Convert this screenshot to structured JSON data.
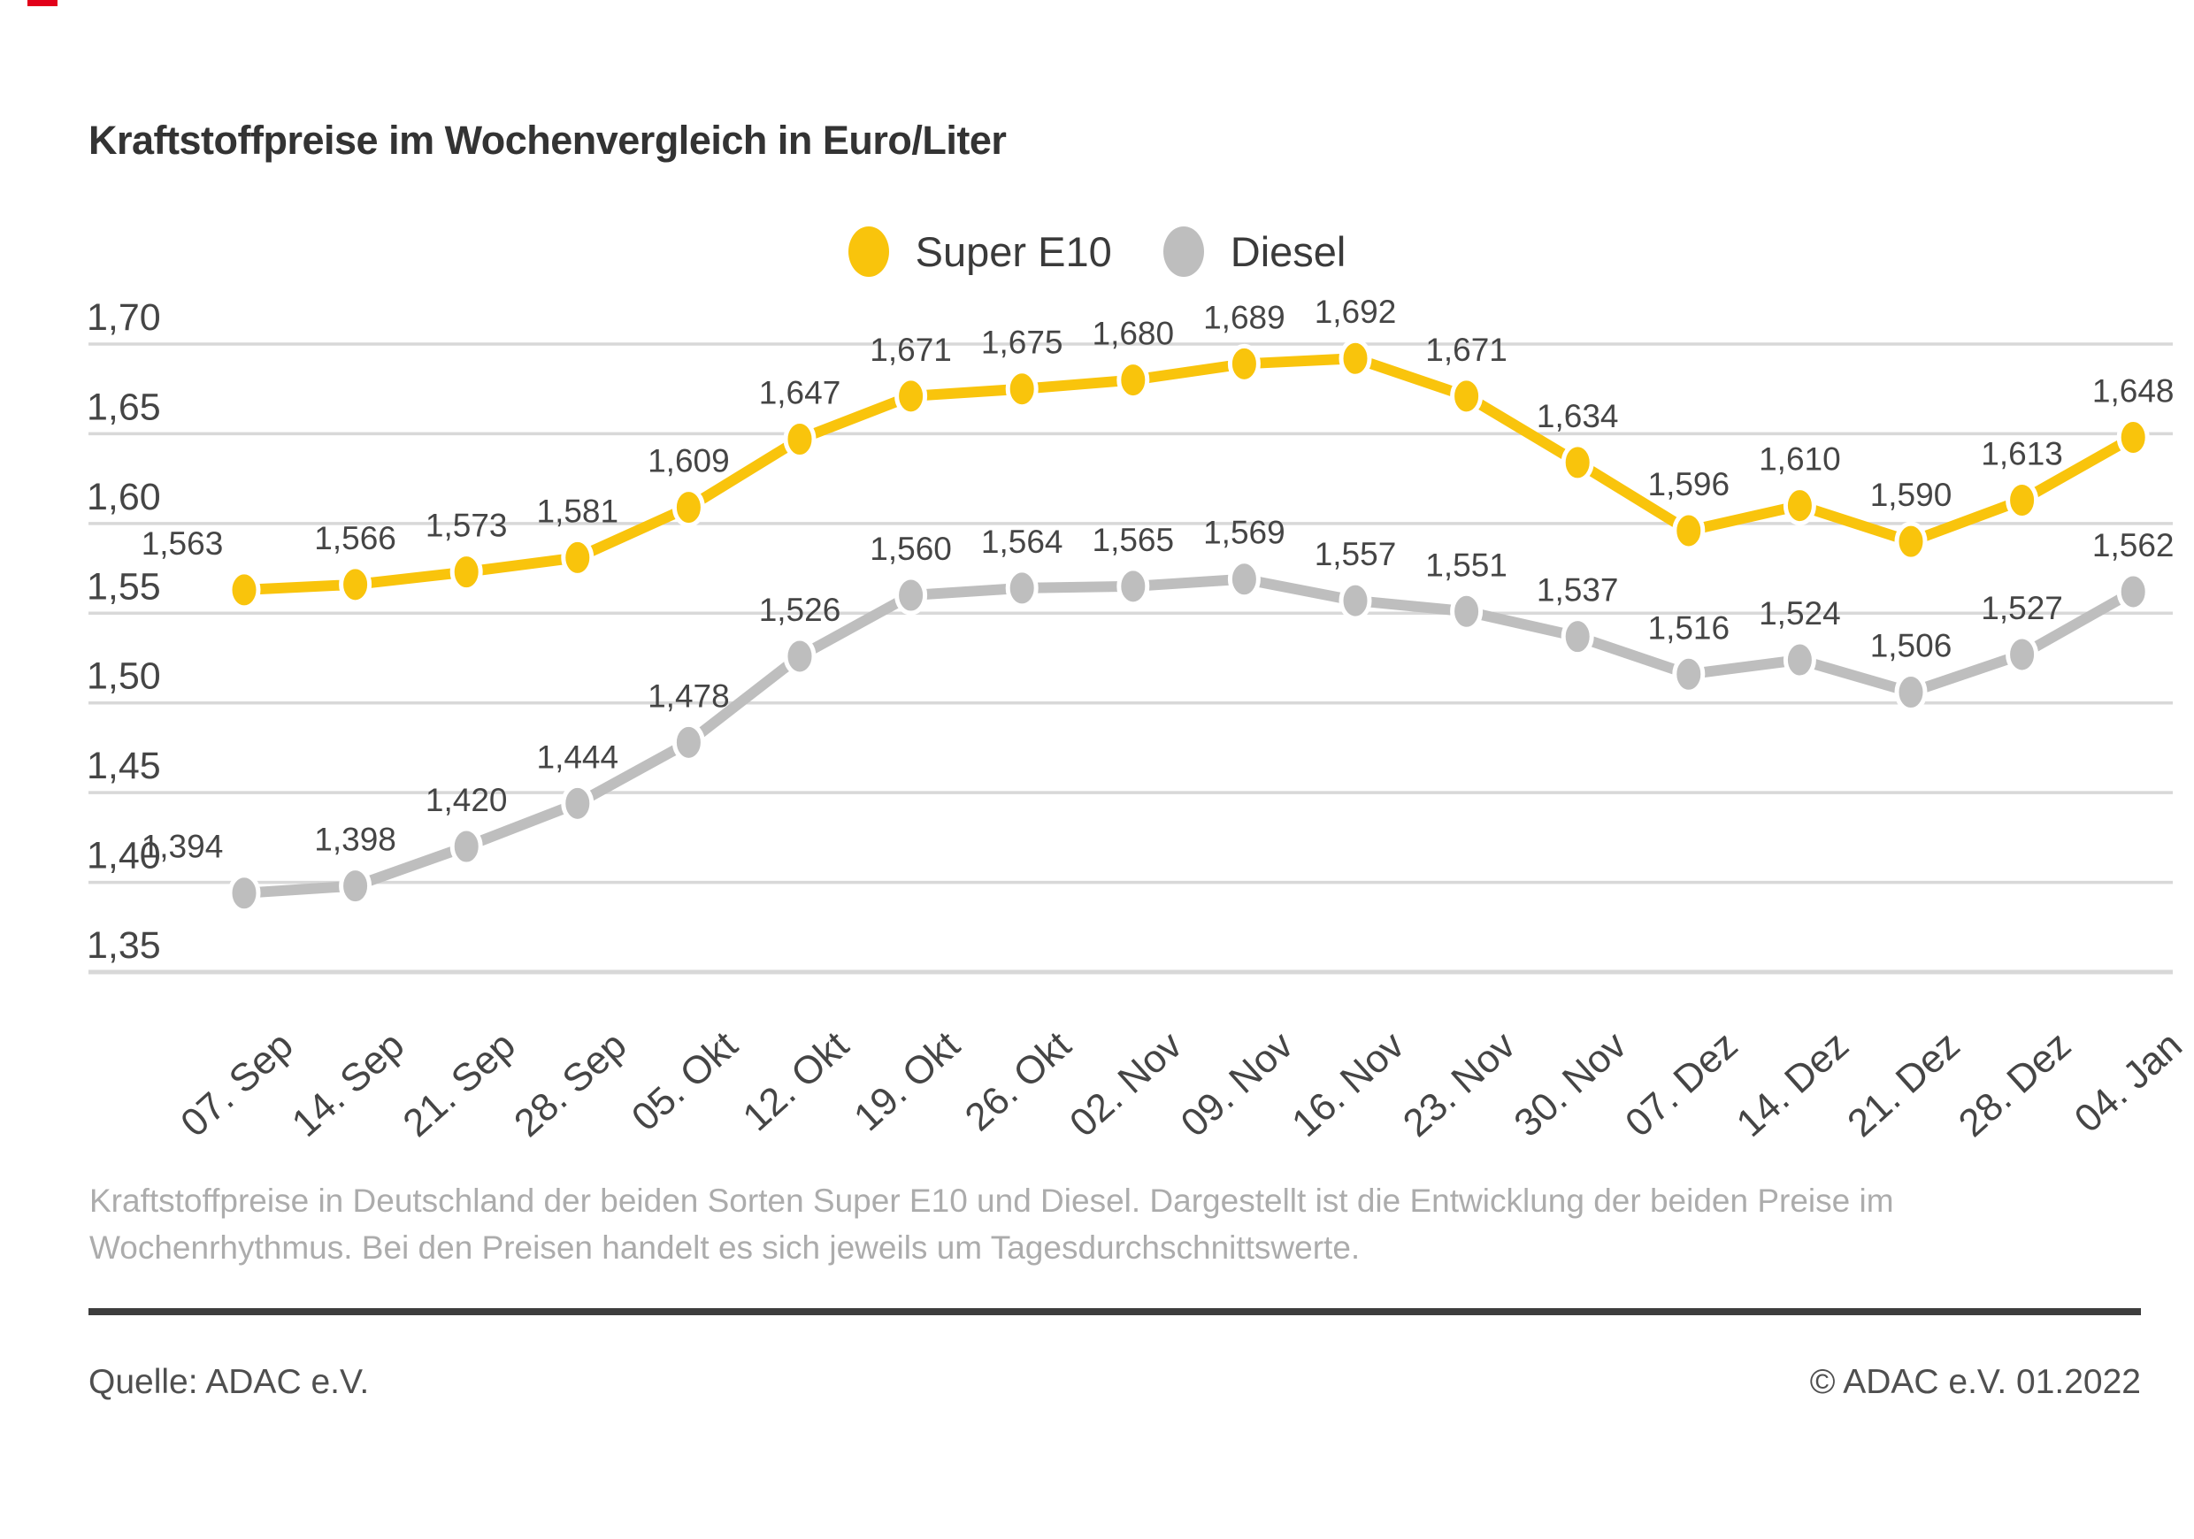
{
  "chart_data": {
    "type": "line",
    "title": "Kraftstoffpreise im Wochenvergleich in Euro/Liter",
    "categories": [
      "07. Sep",
      "14. Sep",
      "21. Sep",
      "28. Sep",
      "05. Okt",
      "12. Okt",
      "19. Okt",
      "26. Okt",
      "02. Nov",
      "09. Nov",
      "16. Nov",
      "23. Nov",
      "30. Nov",
      "07. Dez",
      "14. Dez",
      "21. Dez",
      "28. Dez",
      "04. Jan"
    ],
    "series": [
      {
        "name": "Super E10",
        "color": "#f9c40c",
        "values": [
          1.563,
          1.566,
          1.573,
          1.581,
          1.609,
          1.647,
          1.671,
          1.675,
          1.68,
          1.689,
          1.692,
          1.671,
          1.634,
          1.596,
          1.61,
          1.59,
          1.613,
          1.648
        ],
        "labels": [
          "1,563",
          "1,566",
          "1,573",
          "1,581",
          "1,609",
          "1,647",
          "1,671",
          "1,675",
          "1,680",
          "1,689",
          "1,692",
          "1,671",
          "1,634",
          "1,596",
          "1,610",
          "1,590",
          "1,613",
          "1,648"
        ]
      },
      {
        "name": "Diesel",
        "color": "#bebebe",
        "values": [
          1.394,
          1.398,
          1.42,
          1.444,
          1.478,
          1.526,
          1.56,
          1.564,
          1.565,
          1.569,
          1.557,
          1.551,
          1.537,
          1.516,
          1.524,
          1.506,
          1.527,
          1.562
        ],
        "labels": [
          "1,394",
          "1,398",
          "1,420",
          "1,444",
          "1,478",
          "1,526",
          "1,560",
          "1,564",
          "1,565",
          "1,569",
          "1,557",
          "1,551",
          "1,537",
          "1,516",
          "1,524",
          "1,506",
          "1,527",
          "1,562"
        ]
      }
    ],
    "y_ticks": [
      {
        "label": "1,70",
        "value": 1.7
      },
      {
        "label": "1,65",
        "value": 1.65
      },
      {
        "label": "1,60",
        "value": 1.6
      },
      {
        "label": "1,55",
        "value": 1.55
      },
      {
        "label": "1,50",
        "value": 1.5
      },
      {
        "label": "1,45",
        "value": 1.45
      },
      {
        "label": "1,40",
        "value": 1.4
      },
      {
        "label": "1,35",
        "value": 1.35
      }
    ],
    "xlabel": "",
    "ylabel": "",
    "ylim": [
      1.35,
      1.7
    ],
    "grid": true,
    "legend_position": "top-center"
  },
  "footer": {
    "description": "Kraftstoffpreise in Deutschland der beiden Sorten Super E10 und Diesel. Dargestellt ist die Entwicklung der beiden Preise im Wochenrhythmus. Bei den Preisen handelt es sich jeweils um Tagesdurchschnittswerte.",
    "source": "Quelle: ADAC e.V.",
    "copyright": "© ADAC e.V. 01.2022"
  },
  "colors": {
    "super_e10": "#f9c40c",
    "diesel": "#bebebe",
    "grid": "#d8d8d8",
    "axis_text": "#454545",
    "title_text": "#333333",
    "description_text": "#acacac",
    "footer_text": "#4f4f4f",
    "divider": "#3d3d3d",
    "red_mark": "#e2001a"
  }
}
